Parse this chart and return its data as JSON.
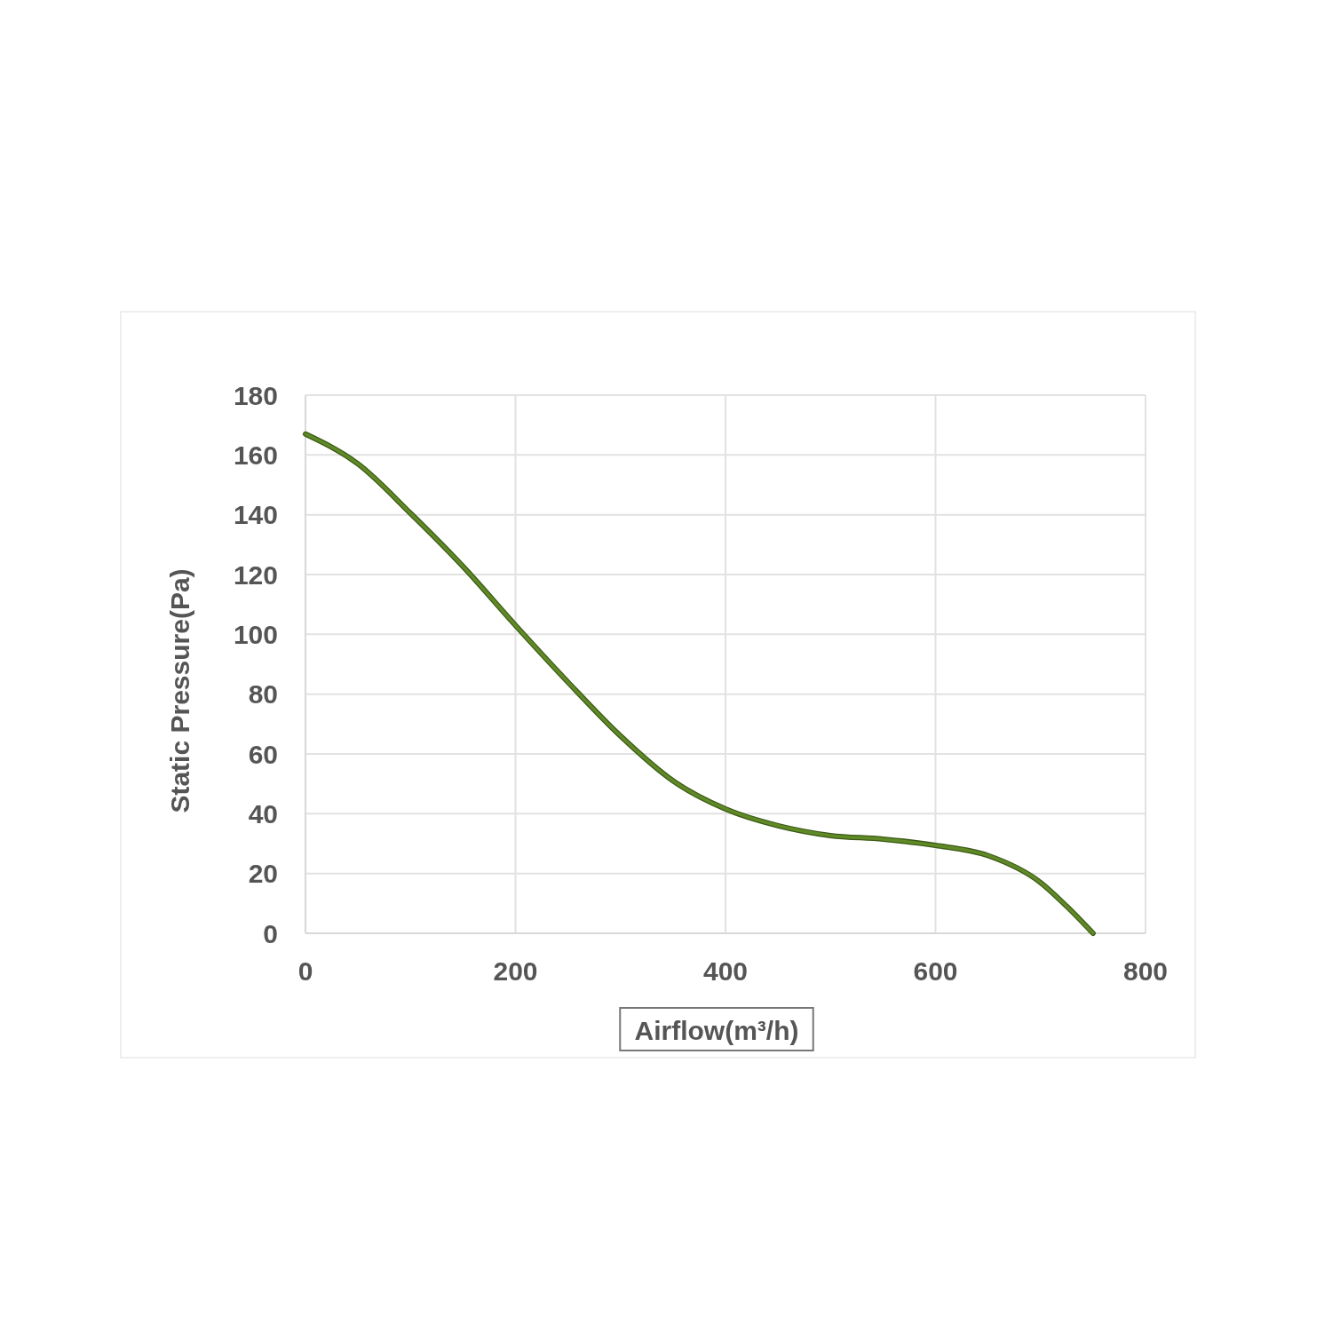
{
  "chart_data": {
    "type": "line",
    "xlabel": "Airflow(m³/h)",
    "ylabel": "Static Pressure(Pa)",
    "x": [
      0,
      50,
      100,
      150,
      200,
      250,
      300,
      350,
      400,
      450,
      500,
      550,
      600,
      650,
      700,
      725,
      750
    ],
    "series": [
      {
        "color": "#5f8a26",
        "values": [
          167,
          157,
          140.5,
          122.7,
          103,
          84,
          66,
          51,
          41.6,
          36,
          32.7,
          31.5,
          29.4,
          26,
          17,
          9,
          0
        ]
      }
    ],
    "xlim": [
      0,
      800
    ],
    "xticks": [
      0,
      200,
      400,
      600,
      800
    ],
    "ylim": [
      0,
      180
    ],
    "yticks": [
      0,
      20,
      40,
      60,
      80,
      100,
      120,
      140,
      160,
      180
    ],
    "grid": true,
    "marker": "none",
    "line_style": "solid"
  }
}
